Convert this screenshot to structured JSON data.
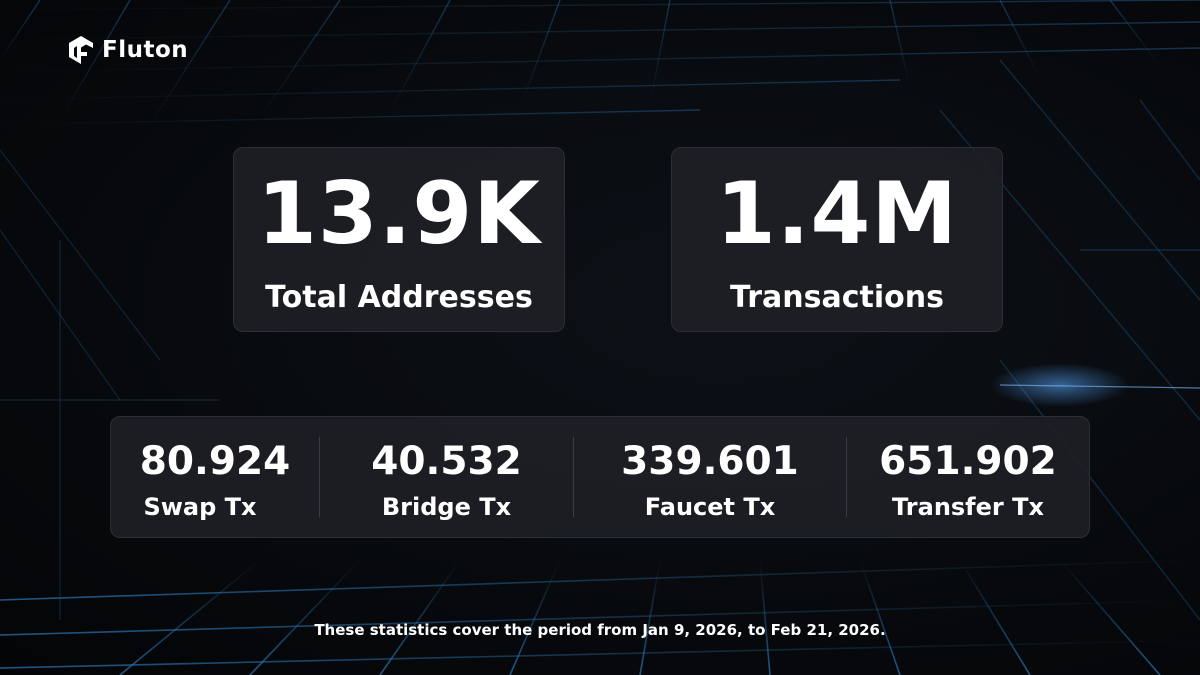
{
  "brand": {
    "name": "Fluton",
    "logo_icon": "fluton-logo-icon"
  },
  "headline_stats": [
    {
      "value": "13.9K",
      "label": "Total Addresses"
    },
    {
      "value": "1.4M",
      "label": "Transactions"
    }
  ],
  "tx_breakdown": [
    {
      "value": "80.924",
      "label": "Swap Tx"
    },
    {
      "value": "40.532",
      "label": "Bridge Tx"
    },
    {
      "value": "339.601",
      "label": "Faucet Tx"
    },
    {
      "value": "651.902",
      "label": "Transfer Tx"
    }
  ],
  "footnote": "These statistics cover the period from Jan 9, 2026, to Feb 21, 2026.",
  "colors": {
    "background": "#07090c",
    "card": "#1e2025",
    "text": "#ffffff",
    "grid_accent": "#1a4d7a"
  }
}
